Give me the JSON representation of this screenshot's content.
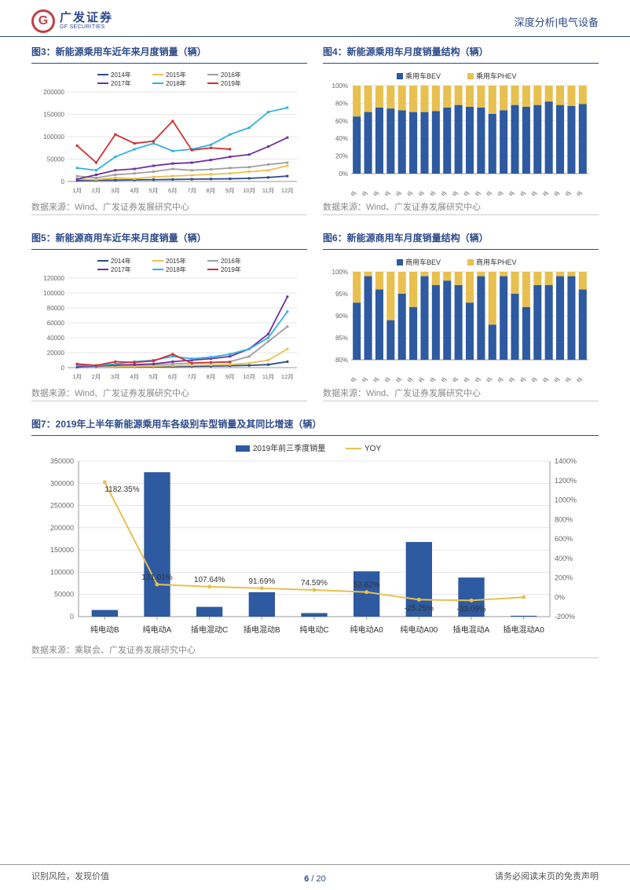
{
  "header": {
    "brand_cn": "广发证券",
    "brand_en": "GF SECURITIES",
    "logo_letter": "G",
    "right": "深度分析|电气设备"
  },
  "chart3": {
    "title": "图3：新能源乘用车近年来月度销量（辆）",
    "legend": [
      {
        "lbl": "2014年",
        "c": "#2d4a8a"
      },
      {
        "lbl": "2015年",
        "c": "#e8c050"
      },
      {
        "lbl": "2016年",
        "c": "#a0a0a0"
      },
      {
        "lbl": "2017年",
        "c": "#7030a0"
      },
      {
        "lbl": "2018年",
        "c": "#30b0e0"
      },
      {
        "lbl": "2019年",
        "c": "#d03030"
      }
    ],
    "ymax": 200000,
    "ystep": 50000,
    "xlabels": [
      "1月",
      "2月",
      "3月",
      "4月",
      "5月",
      "6月",
      "7月",
      "8月",
      "9月",
      "10月",
      "11月",
      "12月"
    ],
    "series": {
      "2014": [
        2000,
        2500,
        3000,
        3500,
        4000,
        4500,
        5000,
        5500,
        6000,
        7000,
        9000,
        12000
      ],
      "2015": [
        5000,
        4000,
        8000,
        6000,
        10000,
        12000,
        14000,
        16000,
        18000,
        22000,
        25000,
        35000
      ],
      "2016": [
        12000,
        8000,
        15000,
        18000,
        22000,
        28000,
        25000,
        27000,
        30000,
        32000,
        38000,
        42000
      ],
      "2017": [
        5000,
        15000,
        25000,
        28000,
        35000,
        40000,
        42000,
        48000,
        55000,
        60000,
        78000,
        98000
      ],
      "2018": [
        30000,
        25000,
        55000,
        72000,
        85000,
        68000,
        72000,
        82000,
        105000,
        120000,
        155000,
        165000
      ],
      "2019": [
        80000,
        42000,
        105000,
        85000,
        90000,
        135000,
        70000,
        75000,
        72000
      ]
    },
    "source": "数据来源：Wind、广发证券发展研究中心"
  },
  "chart4": {
    "title": "图4：新能源乘用车月度销量结构（辆）",
    "legend": [
      {
        "lbl": "乘用车BEV",
        "c": "#2d5aa0"
      },
      {
        "lbl": "乘用车PHEV",
        "c": "#e8c050"
      }
    ],
    "ymin": 0,
    "ymax": 1,
    "ystep": 0.2,
    "xlabels": [
      "1月",
      "2月",
      "3月",
      "4月",
      "5月",
      "6月",
      "7月",
      "8月",
      "9月",
      "10月",
      "11月",
      "12月",
      "1月",
      "2月",
      "3月",
      "4月",
      "5月",
      "6月",
      "7月",
      "8月",
      "9月"
    ],
    "bev": [
      0.65,
      0.7,
      0.75,
      0.74,
      0.72,
      0.7,
      0.7,
      0.71,
      0.75,
      0.78,
      0.76,
      0.75,
      0.68,
      0.72,
      0.78,
      0.76,
      0.78,
      0.82,
      0.78,
      0.77,
      0.79
    ],
    "source": "数据来源：Wind、广发证券发展研究中心"
  },
  "chart5": {
    "title": "图5：新能源商用车近年来月度销量（辆）",
    "legend": [
      {
        "lbl": "2014年",
        "c": "#2d4a8a"
      },
      {
        "lbl": "2015年",
        "c": "#e8c050"
      },
      {
        "lbl": "2016年",
        "c": "#a0a0a0"
      },
      {
        "lbl": "2017年",
        "c": "#7030a0"
      },
      {
        "lbl": "2018年",
        "c": "#30b0e0"
      },
      {
        "lbl": "2019年",
        "c": "#d03030"
      }
    ],
    "ymax": 120000,
    "ystep": 20000,
    "xlabels": [
      "1月",
      "2月",
      "3月",
      "4月",
      "5月",
      "6月",
      "7月",
      "8月",
      "9月",
      "10月",
      "11月",
      "12月"
    ],
    "series": {
      "2014": [
        500,
        600,
        800,
        1000,
        1200,
        1500,
        1800,
        2000,
        2500,
        3000,
        4000,
        8000
      ],
      "2015": [
        1000,
        800,
        1200,
        1500,
        2000,
        2500,
        3000,
        3500,
        4000,
        6000,
        10000,
        25000
      ],
      "2016": [
        2000,
        1500,
        3000,
        3500,
        4000,
        5000,
        6000,
        7000,
        8000,
        15000,
        35000,
        55000
      ],
      "2017": [
        1000,
        2000,
        3500,
        4000,
        5000,
        8000,
        10000,
        12000,
        15000,
        25000,
        45000,
        95000
      ],
      "2018": [
        3000,
        2500,
        5000,
        8000,
        10000,
        15000,
        12000,
        14000,
        18000,
        25000,
        40000,
        75000
      ],
      "2019": [
        5000,
        3000,
        8000,
        7000,
        9000,
        18000,
        6000,
        7000,
        7500
      ]
    },
    "source": "数据来源：Wind、广发证券发展研究中心"
  },
  "chart6": {
    "title": "图6：新能源商用车月度销量结构（辆）",
    "legend": [
      {
        "lbl": "商用车BEV",
        "c": "#2d5aa0"
      },
      {
        "lbl": "商用车PHEV",
        "c": "#e8c050"
      }
    ],
    "ymin": 0.8,
    "ymax": 1,
    "ystep": 0.05,
    "xlabels": [
      "1月",
      "2月",
      "3月",
      "4月",
      "5月",
      "6月",
      "7月",
      "8月",
      "9月",
      "10月",
      "11月",
      "12月",
      "1月",
      "2月",
      "3月",
      "4月",
      "5月",
      "6月",
      "7月",
      "8月",
      "9月"
    ],
    "bev": [
      0.93,
      0.99,
      0.96,
      0.89,
      0.95,
      0.92,
      0.99,
      0.97,
      0.98,
      0.97,
      0.93,
      0.99,
      0.88,
      0.99,
      0.95,
      0.92,
      0.97,
      0.97,
      0.99,
      0.99,
      0.96
    ],
    "source": "数据来源：Wind、广发证券发展研究中心"
  },
  "chart7": {
    "title": "图7：2019年上半年新能源乘用车各级别车型销量及其同比增速（辆）",
    "legend": [
      {
        "lbl": "2019年前三季度销量",
        "c": "#2d5aa0",
        "t": "bar"
      },
      {
        "lbl": "YOY",
        "c": "#e8c050",
        "t": "line"
      }
    ],
    "y1max": 350000,
    "y1step": 50000,
    "y2min": -2,
    "y2max": 14,
    "y2step": 2,
    "xlabels": [
      "纯电动B",
      "纯电动A",
      "插电混动C",
      "插电混动B",
      "纯电动C",
      "纯电动A0",
      "纯电动A00",
      "插电混动A",
      "插电混动A0"
    ],
    "bars": [
      15000,
      325000,
      22000,
      55000,
      8000,
      102000,
      168000,
      88000,
      2000
    ],
    "yoy": [
      11.8235,
      1.3101,
      1.0764,
      0.9169,
      0.7459,
      0.5262,
      -0.2525,
      -0.3309,
      0
    ],
    "yoy_lbl": [
      "1182.35%",
      "131.01%",
      "107.64%",
      "91.69%",
      "74.59%",
      "52.62%",
      "-25.25%",
      "-33.09%",
      ""
    ],
    "source": "数据来源：乘联会、广发证券发展研究中心"
  },
  "footer": {
    "left": "识别风险，发现价值",
    "right": "请务必阅读末页的免责声明",
    "page_cur": "6",
    "page_sep": " / ",
    "page_tot": "20"
  }
}
